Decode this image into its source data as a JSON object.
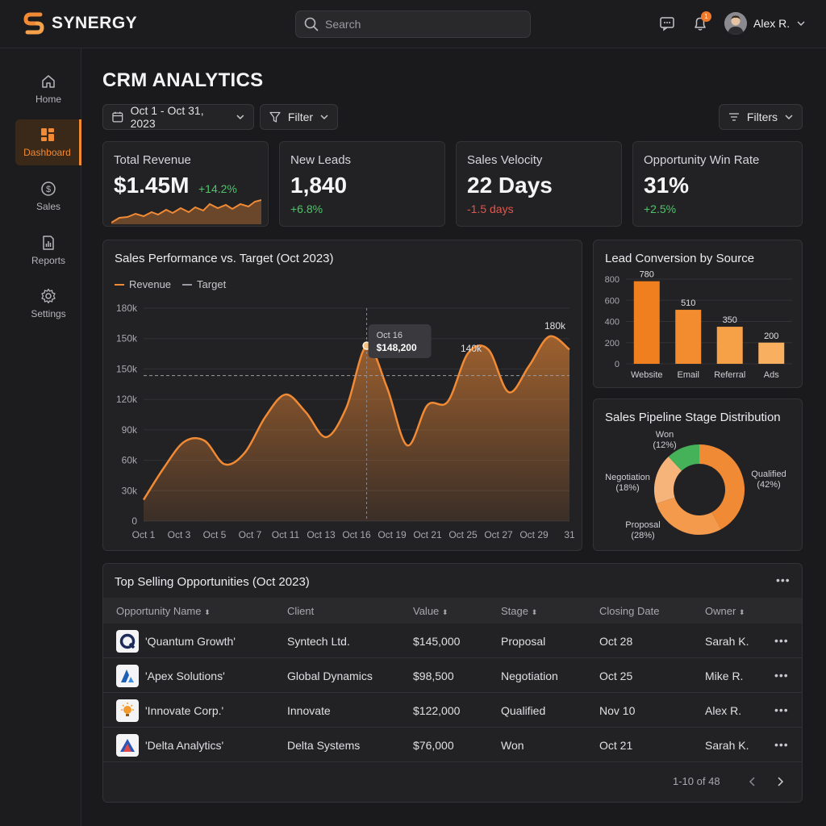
{
  "app": {
    "name": "SYNERGY",
    "brand_color": "#f08a35"
  },
  "search": {
    "placeholder": "Search"
  },
  "user": {
    "name": "Alex R.",
    "notification_count": "1"
  },
  "sidebar": {
    "items": [
      {
        "label": "Home",
        "icon": "home-icon",
        "active": false
      },
      {
        "label": "Dashboard",
        "icon": "dashboard-icon",
        "active": true
      },
      {
        "label": "Sales",
        "icon": "dollar-icon",
        "active": false
      },
      {
        "label": "Reports",
        "icon": "reports-icon",
        "active": false
      },
      {
        "label": "Settings",
        "icon": "gear-icon",
        "active": false
      }
    ]
  },
  "page": {
    "title": "CRM ANALYTICS"
  },
  "controls": {
    "date_range": "Oct 1 - Oct 31, 2023",
    "filter": "Filter",
    "filters": "Filters"
  },
  "kpis": [
    {
      "label": "Total Revenue",
      "value": "$1.45M",
      "delta": "+14.2%",
      "trend": "positive"
    },
    {
      "label": "New Leads",
      "value": "1,840",
      "delta": "+6.8%",
      "trend": "positive"
    },
    {
      "label": "Sales Velocity",
      "value": "22 Days",
      "delta": "-1.5 days",
      "trend": "negative"
    },
    {
      "label": "Opportunity Win Rate",
      "value": "31%",
      "delta": "+2.5%",
      "trend": "positive"
    }
  ],
  "chart_data": [
    {
      "type": "area",
      "title": "Sales Performance vs. Target (Oct 2023)",
      "legend": [
        "Revenue",
        "Target"
      ],
      "y_ticks": [
        "180k",
        "150k",
        "150k",
        "120k",
        "90k",
        "60k",
        "30k",
        "0"
      ],
      "x_ticks": [
        "Oct 1",
        "Oct 3",
        "Oct 5",
        "Oct 7",
        "Oct 11",
        "Oct 13",
        "Oct 16",
        "Oct 19",
        "Oct 21",
        "Oct 25",
        "Oct 27",
        "Oct 29",
        "31"
      ],
      "series": [
        {
          "name": "Revenue",
          "values": [
            18000,
            45000,
            67000,
            68000,
            48000,
            58000,
            88000,
            107000,
            92000,
            71000,
            96000,
            148200,
            113000,
            64000,
            98000,
            101000,
            142000,
            145000,
            109000,
            131000,
            156000,
            145000
          ]
        },
        {
          "name": "Target",
          "values": [
            123000
          ]
        }
      ],
      "tooltip": {
        "date": "Oct 16",
        "value": "$148,200"
      },
      "annotations": [
        "140k",
        "180k"
      ],
      "ylim": [
        0,
        180000
      ],
      "colors": {
        "revenue": "#f08a35",
        "target": "#9a9aa0"
      }
    },
    {
      "type": "bar",
      "title": "Lead Conversion by Source",
      "categories": [
        "Website",
        "Email",
        "Referral",
        "Ads"
      ],
      "values": [
        780,
        510,
        350,
        200
      ],
      "data_labels": [
        "780",
        "510",
        "350",
        "200"
      ],
      "y_ticks": [
        "800",
        "600",
        "400",
        "200",
        "0"
      ],
      "ylim": [
        0,
        800
      ],
      "colors": [
        "#f07f1f",
        "#f38c2e",
        "#f6a048",
        "#f8b060"
      ]
    },
    {
      "type": "pie",
      "title": "Sales Pipeline Stage Distribution",
      "slices": [
        {
          "label": "Qualified",
          "pct_label": "(42%)",
          "value": 42,
          "color": "#f08a35"
        },
        {
          "label": "Proposal",
          "pct_label": "(28%)",
          "value": 28,
          "color": "#f39a4c"
        },
        {
          "label": "Negotiation",
          "pct_label": "(18%)",
          "value": 18,
          "color": "#f6b37a"
        },
        {
          "label": "Won",
          "pct_label": "(12%)",
          "value": 12,
          "color": "#45b25a"
        }
      ]
    }
  ],
  "table": {
    "title": "Top Selling Opportunities (Oct 2023)",
    "columns": [
      "Opportunity Name",
      "Client",
      "Value",
      "Stage",
      "Closing Date",
      "Owner"
    ],
    "rows": [
      {
        "name": "'Quantum Growth'",
        "client": "Syntech Ltd.",
        "value": "$145,000",
        "stage": "Proposal",
        "closing": "Oct 28",
        "owner": "Sarah K.",
        "icon": "quantum-logo-icon"
      },
      {
        "name": "'Apex Solutions'",
        "client": "Global Dynamics",
        "value": "$98,500",
        "stage": "Negotiation",
        "closing": "Oct 25",
        "owner": "Mike R.",
        "icon": "apex-logo-icon"
      },
      {
        "name": "'Innovate Corp.'",
        "client": "Innovate",
        "value": "$122,000",
        "stage": "Qualified",
        "closing": "Nov 10",
        "owner": "Alex R.",
        "icon": "lightbulb-logo-icon"
      },
      {
        "name": "'Delta Analytics'",
        "client": "Delta Systems",
        "value": "$76,000",
        "stage": "Won",
        "closing": "Oct 21",
        "owner": "Sarah K.",
        "icon": "delta-logo-icon"
      }
    ],
    "pagination": "1-10 of 48"
  }
}
